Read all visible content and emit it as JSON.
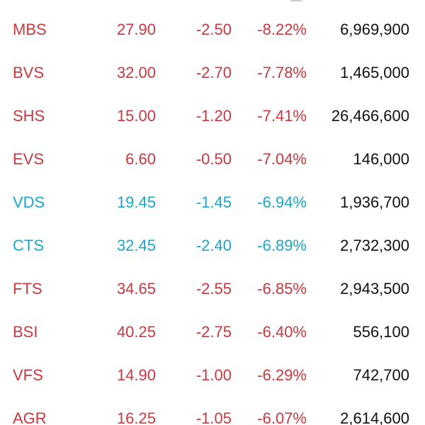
{
  "colors": {
    "down": "#c8383f",
    "floor": "#1aa7c9",
    "volume": "#111111"
  },
  "stocks": [
    {
      "symbol": "MBS",
      "price": "27.90",
      "change": "-2.50",
      "percent": "-8.22%",
      "volume": "6,969,900",
      "status": "down"
    },
    {
      "symbol": "BVS",
      "price": "32.00",
      "change": "-2.70",
      "percent": "-7.78%",
      "volume": "1,465,000",
      "status": "down"
    },
    {
      "symbol": "SHS",
      "price": "15.00",
      "change": "-1.20",
      "percent": "-7.41%",
      "volume": "26,466,600",
      "status": "down"
    },
    {
      "symbol": "EVS",
      "price": "6.60",
      "change": "-0.50",
      "percent": "-7.04%",
      "volume": "146,000",
      "status": "down"
    },
    {
      "symbol": "VDS",
      "price": "19.45",
      "change": "-1.45",
      "percent": "-6.94%",
      "volume": "1,936,700",
      "status": "floor"
    },
    {
      "symbol": "CTS",
      "price": "32.45",
      "change": "-2.40",
      "percent": "-6.89%",
      "volume": "2,732,300",
      "status": "floor"
    },
    {
      "symbol": "FTS",
      "price": "34.65",
      "change": "-2.55",
      "percent": "-6.85%",
      "volume": "2,943,500",
      "status": "down"
    },
    {
      "symbol": "BSI",
      "price": "40.25",
      "change": "-2.75",
      "percent": "-6.40%",
      "volume": "556,100",
      "status": "down"
    },
    {
      "symbol": "VFS",
      "price": "14.90",
      "change": "-1.00",
      "percent": "-6.29%",
      "volume": "742,700",
      "status": "down"
    },
    {
      "symbol": "AGR",
      "price": "16.25",
      "change": "-1.05",
      "percent": "-6.07%",
      "volume": "2,614,600",
      "status": "down"
    }
  ]
}
